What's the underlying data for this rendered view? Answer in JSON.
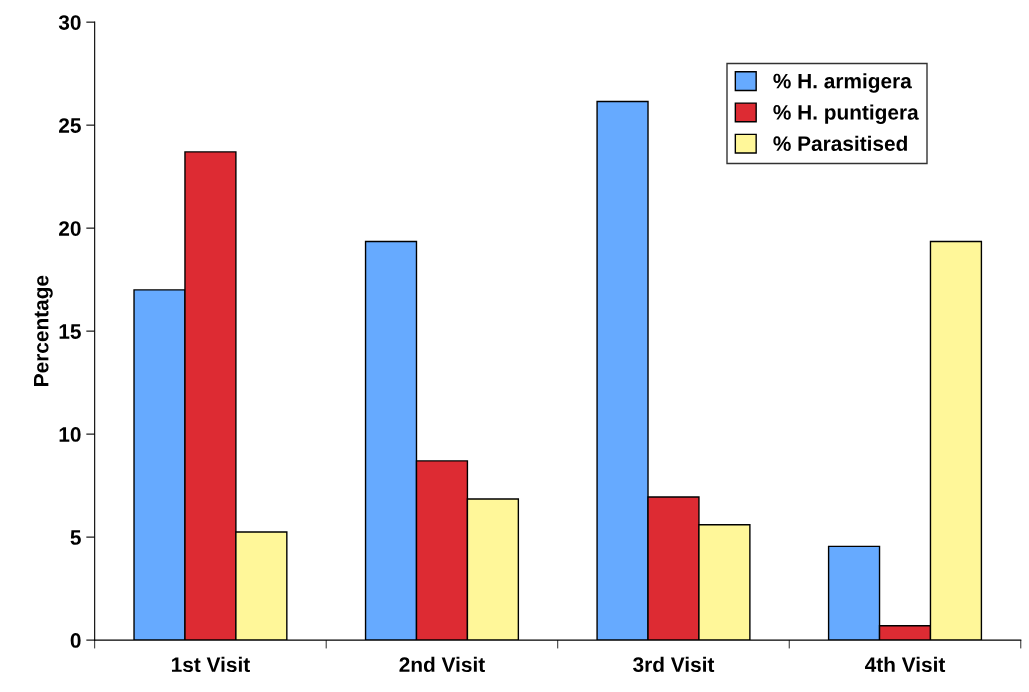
{
  "chart_data": {
    "type": "bar",
    "ylabel": "Percentage",
    "categories": [
      "1st Visit",
      "2nd Visit",
      "3rd Visit",
      "4th Visit"
    ],
    "series": [
      {
        "name": "% H. armigera",
        "color": "#66aaff",
        "values": [
          17.0,
          19.35,
          26.15,
          4.55
        ]
      },
      {
        "name": "% H. puntigera",
        "color": "#dd2b33",
        "values": [
          23.7,
          8.7,
          6.95,
          0.7
        ]
      },
      {
        "name": "% Parasitised",
        "color": "#fff799",
        "values": [
          5.25,
          6.85,
          5.6,
          19.35
        ]
      }
    ],
    "ylim": [
      0,
      30
    ],
    "yticks": [
      0,
      5,
      10,
      15,
      20,
      25,
      30
    ],
    "grid": false,
    "legend": "top right"
  }
}
